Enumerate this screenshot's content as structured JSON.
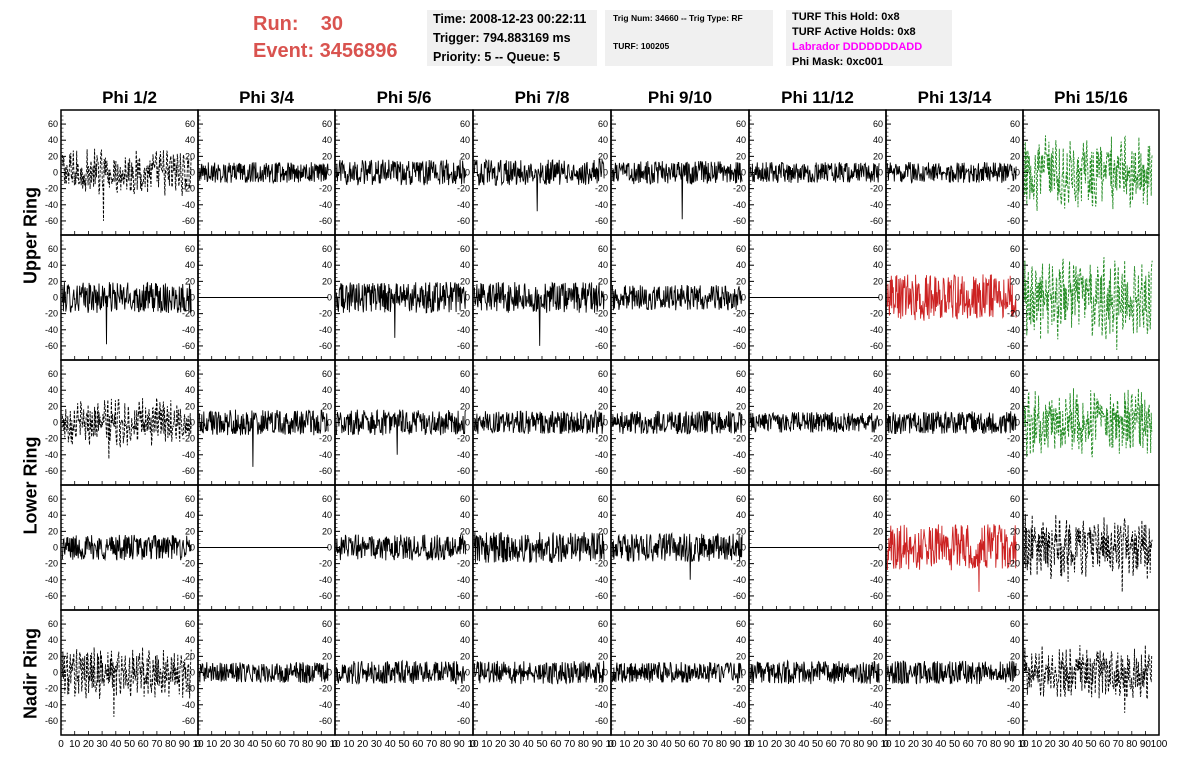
{
  "header": {
    "run_label": "Run:    30",
    "event_label": "Event: 3456896",
    "time": "Time: 2008-12-23 00:22:11",
    "trigger": "Trigger: 794.883169 ms",
    "priority": "Priority: 5 -- Queue: 5",
    "trig_num": "Trig Num: 34660 -- Trig Type: RF",
    "turf": "TURF: 100205",
    "turf_this_hold": "TURF This Hold: 0x8",
    "turf_active_holds": "TURF Active Holds: 0x8",
    "labrador": "Labrador DDDDDDDADD",
    "phi_mask": "Phi Mask: 0xc001"
  },
  "colors": {
    "header_red": "#d9534f",
    "labrador_magenta": "#ff00ff",
    "trace_black": "#000000",
    "trace_red": "#cc2222",
    "trace_green": "#228b22"
  },
  "chart_data": {
    "type": "line",
    "columns": [
      "Phi 1/2",
      "Phi 3/4",
      "Phi 5/6",
      "Phi 7/8",
      "Phi 9/10",
      "Phi 11/12",
      "Phi 13/14",
      "Phi 15/16"
    ],
    "row_groups": [
      {
        "label": "Upper Ring",
        "rows": [
          0,
          1
        ]
      },
      {
        "label": "Lower Ring",
        "rows": [
          2,
          3
        ]
      },
      {
        "label": "Nadir Ring",
        "rows": [
          4
        ]
      }
    ],
    "xlim": [
      0,
      100
    ],
    "ylim": [
      -70,
      70
    ],
    "x_ticks": [
      0,
      10,
      20,
      30,
      40,
      50,
      60,
      70,
      80,
      90,
      100
    ],
    "x_tick_labels_first": [
      "0",
      "10",
      "20",
      "30",
      "40",
      "50",
      "60",
      "70",
      "80",
      "90",
      "10"
    ],
    "x_tick_labels_mid": [
      "0",
      "10",
      "20",
      "30",
      "40",
      "50",
      "60",
      "70",
      "80",
      "90",
      "10"
    ],
    "x_tick_labels_last": [
      "0",
      "10",
      "20",
      "30",
      "40",
      "50",
      "60",
      "70",
      "80",
      "90",
      "100"
    ],
    "y_ticks": [
      -60,
      -40,
      -20,
      0,
      20,
      40,
      60
    ],
    "y_tick_labels": [
      "-60",
      "-40",
      "-20",
      "0",
      "20",
      "40",
      "60"
    ],
    "panels": [
      [
        {
          "style": "dashed",
          "color": "black",
          "amp": 14,
          "spike": -60
        },
        {
          "style": "solid",
          "color": "black",
          "amp": 8,
          "spike": null
        },
        {
          "style": "solid",
          "color": "black",
          "amp": 10,
          "spike": null
        },
        {
          "style": "solid",
          "color": "black",
          "amp": 10,
          "spike": -48
        },
        {
          "style": "solid",
          "color": "black",
          "amp": 9,
          "spike": -58
        },
        {
          "style": "solid",
          "color": "black",
          "amp": 8,
          "spike": null
        },
        {
          "style": "solid",
          "color": "black",
          "amp": 8,
          "spike": null
        },
        {
          "style": "dashed",
          "color": "green",
          "amp": 22,
          "spike": null
        }
      ],
      [
        {
          "style": "solid",
          "color": "black",
          "amp": 12,
          "spike": -58
        },
        {
          "style": "flat",
          "color": "black",
          "amp": 0,
          "spike": null
        },
        {
          "style": "solid",
          "color": "black",
          "amp": 12,
          "spike": -50
        },
        {
          "style": "solid",
          "color": "black",
          "amp": 12,
          "spike": -60
        },
        {
          "style": "solid",
          "color": "black",
          "amp": 10,
          "spike": null
        },
        {
          "style": "flat",
          "color": "black",
          "amp": 0,
          "spike": null
        },
        {
          "style": "solid",
          "color": "red",
          "amp": 18,
          "spike": null
        },
        {
          "style": "dashed",
          "color": "green",
          "amp": 24,
          "spike": -65
        }
      ],
      [
        {
          "style": "dashed",
          "color": "black",
          "amp": 14,
          "spike": -45
        },
        {
          "style": "solid",
          "color": "black",
          "amp": 10,
          "spike": -55
        },
        {
          "style": "solid",
          "color": "black",
          "amp": 10,
          "spike": -40
        },
        {
          "style": "solid",
          "color": "black",
          "amp": 9,
          "spike": null
        },
        {
          "style": "solid",
          "color": "black",
          "amp": 9,
          "spike": null
        },
        {
          "style": "solid",
          "color": "black",
          "amp": 8,
          "spike": null
        },
        {
          "style": "solid",
          "color": "black",
          "amp": 9,
          "spike": null
        },
        {
          "style": "dashed",
          "color": "green",
          "amp": 20,
          "spike": null
        }
      ],
      [
        {
          "style": "solid",
          "color": "black",
          "amp": 10,
          "spike": null
        },
        {
          "style": "flat",
          "color": "black",
          "amp": 0,
          "spike": null
        },
        {
          "style": "solid",
          "color": "black",
          "amp": 10,
          "spike": null
        },
        {
          "style": "solid",
          "color": "black",
          "amp": 12,
          "spike": null
        },
        {
          "style": "solid",
          "color": "black",
          "amp": 11,
          "spike": -40
        },
        {
          "style": "flat",
          "color": "black",
          "amp": 0,
          "spike": null
        },
        {
          "style": "solid",
          "color": "red",
          "amp": 18,
          "spike": -55
        },
        {
          "style": "dashed",
          "color": "black",
          "amp": 20,
          "spike": -55
        }
      ],
      [
        {
          "style": "dashed",
          "color": "black",
          "amp": 16,
          "spike": -55
        },
        {
          "style": "solid",
          "color": "black",
          "amp": 8,
          "spike": null
        },
        {
          "style": "solid",
          "color": "black",
          "amp": 9,
          "spike": null
        },
        {
          "style": "solid",
          "color": "black",
          "amp": 9,
          "spike": null
        },
        {
          "style": "solid",
          "color": "black",
          "amp": 8,
          "spike": null
        },
        {
          "style": "solid",
          "color": "black",
          "amp": 9,
          "spike": null
        },
        {
          "style": "solid",
          "color": "black",
          "amp": 9,
          "spike": null
        },
        {
          "style": "dashed",
          "color": "black",
          "amp": 16,
          "spike": -50
        }
      ]
    ]
  }
}
